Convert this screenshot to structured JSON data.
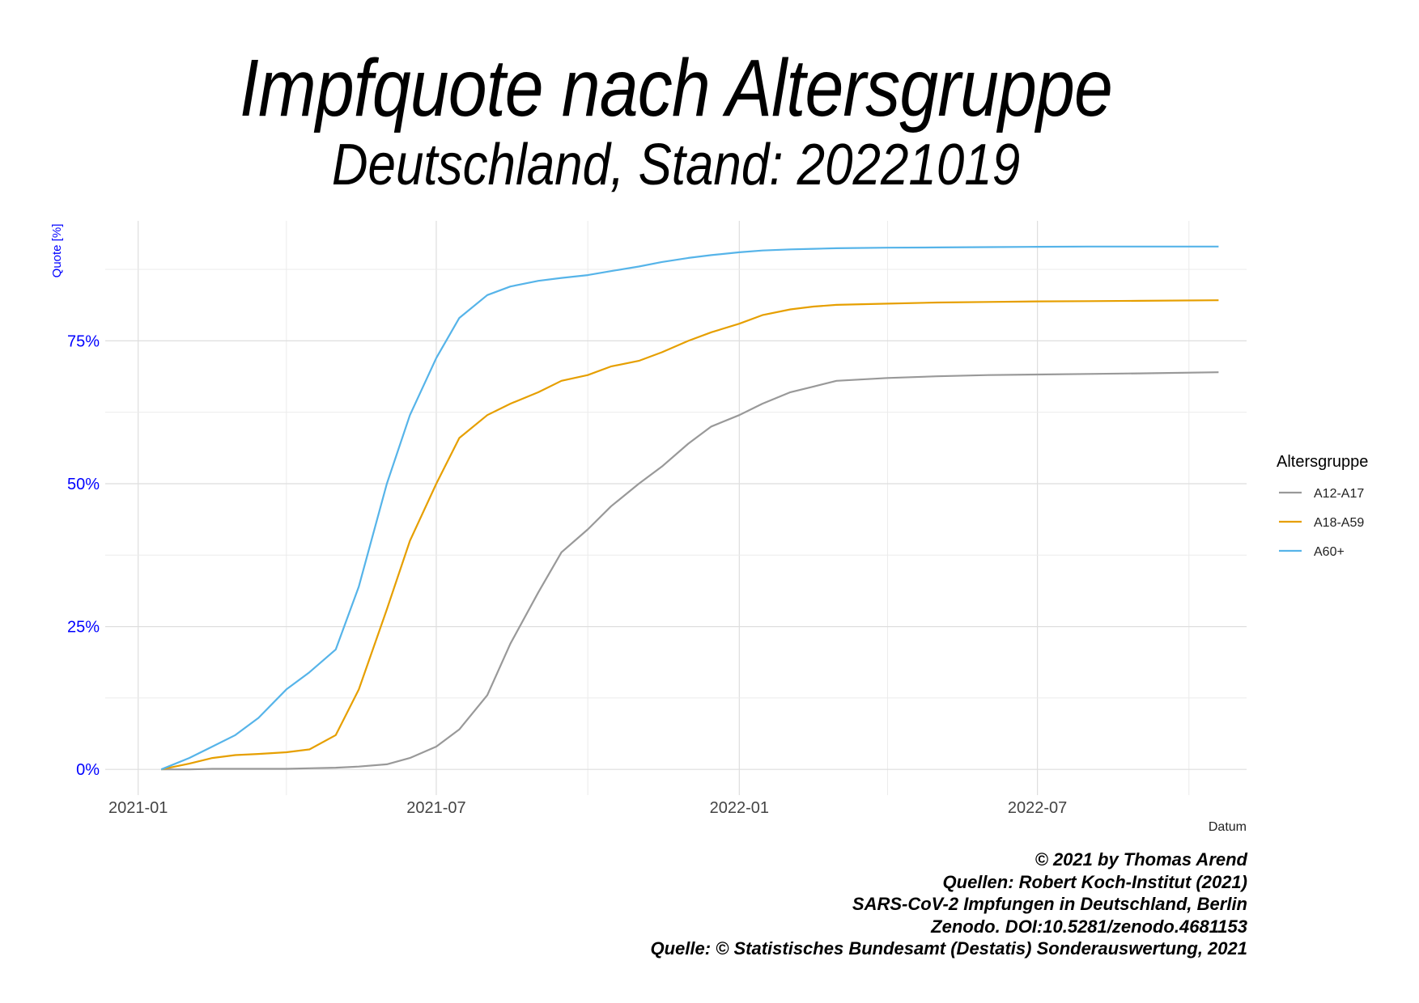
{
  "chart_data": {
    "type": "line",
    "title": "Impfquote nach Altersgruppe",
    "subtitle": "Deutschland, Stand: 20221019",
    "xlabel": "Datum",
    "ylabel": "Quote [%]",
    "x_ticks": [
      "2021-01",
      "2021-07",
      "2022-01",
      "2022-07"
    ],
    "y_ticks": [
      "0%",
      "25%",
      "50%",
      "75%"
    ],
    "ylim": [
      -4.5,
      96
    ],
    "xlim": [
      "2020-12-12",
      "2022-11-05"
    ],
    "grid": true,
    "legend_title": "Altersgruppe",
    "legend_position": "right",
    "x": [
      "2021-01-15",
      "2021-02-01",
      "2021-02-15",
      "2021-03-01",
      "2021-03-15",
      "2021-04-01",
      "2021-04-15",
      "2021-05-01",
      "2021-05-15",
      "2021-06-01",
      "2021-06-15",
      "2021-07-01",
      "2021-07-15",
      "2021-08-01",
      "2021-08-15",
      "2021-09-01",
      "2021-09-15",
      "2021-10-01",
      "2021-10-15",
      "2021-11-01",
      "2021-11-15",
      "2021-12-01",
      "2021-12-15",
      "2022-01-01",
      "2022-01-15",
      "2022-02-01",
      "2022-02-15",
      "2022-03-01",
      "2022-04-01",
      "2022-05-01",
      "2022-06-01",
      "2022-07-01",
      "2022-08-01",
      "2022-09-01",
      "2022-10-19"
    ],
    "series": [
      {
        "name": "A12-A17",
        "color": "#999999",
        "values": [
          0,
          0,
          0.1,
          0.1,
          0.1,
          0.1,
          0.2,
          0.3,
          0.5,
          0.9,
          2,
          4,
          7,
          13,
          22,
          31,
          38,
          42,
          46,
          50,
          53,
          57,
          60,
          62,
          64,
          66,
          67,
          68,
          68.5,
          68.8,
          69,
          69.1,
          69.2,
          69.3,
          69.5
        ]
      },
      {
        "name": "A18-A59",
        "color": "#E69F00",
        "values": [
          0,
          1,
          2,
          2.5,
          2.7,
          3,
          3.5,
          6,
          14,
          28,
          40,
          50,
          58,
          62,
          64,
          66,
          68,
          69,
          70.5,
          71.5,
          73,
          75,
          76.5,
          78,
          79.5,
          80.5,
          81,
          81.3,
          81.5,
          81.7,
          81.8,
          81.9,
          81.95,
          82,
          82.1
        ]
      },
      {
        "name": "A60+",
        "color": "#56B4E9",
        "values": [
          0,
          2,
          4,
          6,
          9,
          14,
          17,
          21,
          32,
          50,
          62,
          72,
          79,
          83,
          84.5,
          85.5,
          86,
          86.5,
          87.2,
          88,
          88.8,
          89.5,
          90,
          90.5,
          90.8,
          91,
          91.1,
          91.2,
          91.3,
          91.35,
          91.4,
          91.45,
          91.5,
          91.5,
          91.5
        ]
      }
    ]
  },
  "caption": [
    "© 2021 by Thomas Arend",
    "Quellen: Robert Koch-Institut (2021)",
    "SARS-CoV-2 Impfungen in Deutschland, Berlin",
    "Zenodo. DOI:10.5281/zenodo.4681153",
    "Quelle: © Statistisches Bundesamt (Destatis) Sonderauswertung, 2021"
  ]
}
